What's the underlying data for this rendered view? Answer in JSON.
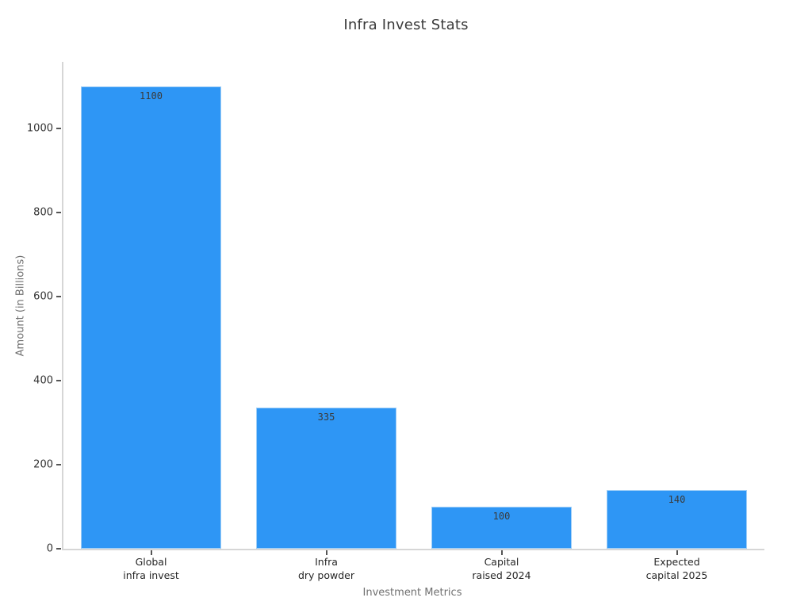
{
  "chart_data": {
    "type": "bar",
    "title": "Infra Invest Stats",
    "xlabel": "Investment Metrics",
    "ylabel": "Amount (in Billions)",
    "categories": [
      "Global\ninfra invest",
      "Infra\ndry powder",
      "Capital\nraised 2024",
      "Expected\ncapital 2025"
    ],
    "values": [
      1100,
      335,
      100,
      140
    ],
    "bar_value_labels": [
      "1100",
      "335",
      "100",
      "140"
    ],
    "yticks": [
      0,
      200,
      400,
      600,
      800,
      1000
    ],
    "ylim": [
      0,
      1158
    ],
    "grid": false,
    "legend": null,
    "bar_width_fraction": 0.805,
    "colors": {
      "bar_fill": "#2e96f5",
      "bar_edge": "#9fcef7",
      "axis_line": "#d6d6d6",
      "tick_mark": "#555555",
      "tick_label": "#333333",
      "category_label": "#262626",
      "value_label": "#3a3a3a",
      "axis_title": "#707070",
      "title": "#3a3a3a",
      "background": "#ffffff"
    }
  }
}
